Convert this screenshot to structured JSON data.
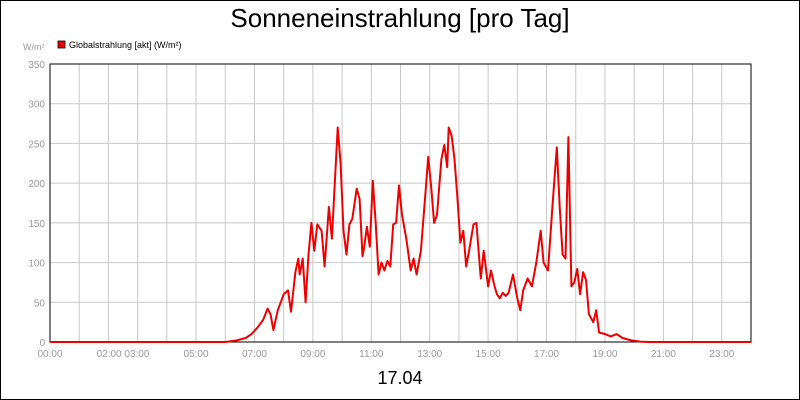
{
  "chart_data": {
    "type": "line",
    "title": "Sonneneinstrahlung [pro Tag]",
    "ylabel": "W/m²",
    "xlabel": "17.04",
    "x_tick_labels": [
      "00:00",
      "02:00 03:00",
      "05:00",
      "07:00",
      "09:00",
      "11:00",
      "13:00",
      "15:00",
      "17:00",
      "19:00",
      "21:00",
      "23:00"
    ],
    "y_ticks": [
      0,
      50,
      100,
      150,
      200,
      250,
      300,
      350
    ],
    "xlim": [
      0,
      24
    ],
    "ylim": [
      0,
      350
    ],
    "grid": true,
    "legend_position": "top-left",
    "series": [
      {
        "name": "Globalstrahlung [akt] (W/m²)",
        "color": "#ee0000",
        "points": [
          [
            0,
            0
          ],
          [
            6.0,
            0
          ],
          [
            6.4,
            2
          ],
          [
            6.7,
            5
          ],
          [
            6.9,
            10
          ],
          [
            7.1,
            18
          ],
          [
            7.3,
            28
          ],
          [
            7.45,
            42
          ],
          [
            7.55,
            35
          ],
          [
            7.65,
            15
          ],
          [
            7.8,
            40
          ],
          [
            8.0,
            60
          ],
          [
            8.15,
            65
          ],
          [
            8.25,
            38
          ],
          [
            8.4,
            88
          ],
          [
            8.5,
            105
          ],
          [
            8.55,
            85
          ],
          [
            8.65,
            105
          ],
          [
            8.75,
            50
          ],
          [
            8.85,
            110
          ],
          [
            8.95,
            150
          ],
          [
            9.05,
            115
          ],
          [
            9.15,
            148
          ],
          [
            9.3,
            140
          ],
          [
            9.4,
            95
          ],
          [
            9.55,
            170
          ],
          [
            9.65,
            130
          ],
          [
            9.75,
            200
          ],
          [
            9.85,
            270
          ],
          [
            9.95,
            225
          ],
          [
            10.05,
            140
          ],
          [
            10.15,
            110
          ],
          [
            10.25,
            148
          ],
          [
            10.35,
            155
          ],
          [
            10.5,
            193
          ],
          [
            10.6,
            180
          ],
          [
            10.7,
            108
          ],
          [
            10.75,
            118
          ],
          [
            10.85,
            145
          ],
          [
            10.95,
            120
          ],
          [
            11.05,
            203
          ],
          [
            11.15,
            150
          ],
          [
            11.25,
            85
          ],
          [
            11.35,
            100
          ],
          [
            11.45,
            90
          ],
          [
            11.55,
            102
          ],
          [
            11.65,
            95
          ],
          [
            11.75,
            148
          ],
          [
            11.85,
            150
          ],
          [
            11.95,
            197
          ],
          [
            12.05,
            160
          ],
          [
            12.2,
            130
          ],
          [
            12.35,
            90
          ],
          [
            12.45,
            105
          ],
          [
            12.55,
            85
          ],
          [
            12.7,
            115
          ],
          [
            12.85,
            185
          ],
          [
            12.95,
            233
          ],
          [
            13.05,
            195
          ],
          [
            13.15,
            150
          ],
          [
            13.25,
            160
          ],
          [
            13.4,
            230
          ],
          [
            13.5,
            248
          ],
          [
            13.6,
            220
          ],
          [
            13.65,
            270
          ],
          [
            13.75,
            260
          ],
          [
            13.85,
            230
          ],
          [
            13.95,
            180
          ],
          [
            14.05,
            125
          ],
          [
            14.15,
            140
          ],
          [
            14.25,
            95
          ],
          [
            14.35,
            115
          ],
          [
            14.5,
            148
          ],
          [
            14.6,
            150
          ],
          [
            14.75,
            80
          ],
          [
            14.85,
            115
          ],
          [
            15.0,
            70
          ],
          [
            15.1,
            90
          ],
          [
            15.2,
            73
          ],
          [
            15.3,
            60
          ],
          [
            15.4,
            55
          ],
          [
            15.5,
            62
          ],
          [
            15.6,
            58
          ],
          [
            15.7,
            62
          ],
          [
            15.85,
            85
          ],
          [
            16.0,
            55
          ],
          [
            16.1,
            40
          ],
          [
            16.2,
            65
          ],
          [
            16.35,
            80
          ],
          [
            16.5,
            70
          ],
          [
            16.65,
            100
          ],
          [
            16.8,
            140
          ],
          [
            16.9,
            100
          ],
          [
            17.05,
            90
          ],
          [
            17.2,
            170
          ],
          [
            17.35,
            245
          ],
          [
            17.45,
            170
          ],
          [
            17.55,
            110
          ],
          [
            17.65,
            105
          ],
          [
            17.75,
            258
          ],
          [
            17.85,
            70
          ],
          [
            17.95,
            75
          ],
          [
            18.05,
            92
          ],
          [
            18.15,
            60
          ],
          [
            18.25,
            88
          ],
          [
            18.35,
            78
          ],
          [
            18.45,
            35
          ],
          [
            18.6,
            25
          ],
          [
            18.7,
            40
          ],
          [
            18.8,
            12
          ],
          [
            19.0,
            10
          ],
          [
            19.2,
            7
          ],
          [
            19.4,
            10
          ],
          [
            19.6,
            5
          ],
          [
            19.9,
            2
          ],
          [
            20.2,
            0.5
          ],
          [
            20.5,
            0
          ],
          [
            24,
            0
          ]
        ]
      }
    ]
  }
}
